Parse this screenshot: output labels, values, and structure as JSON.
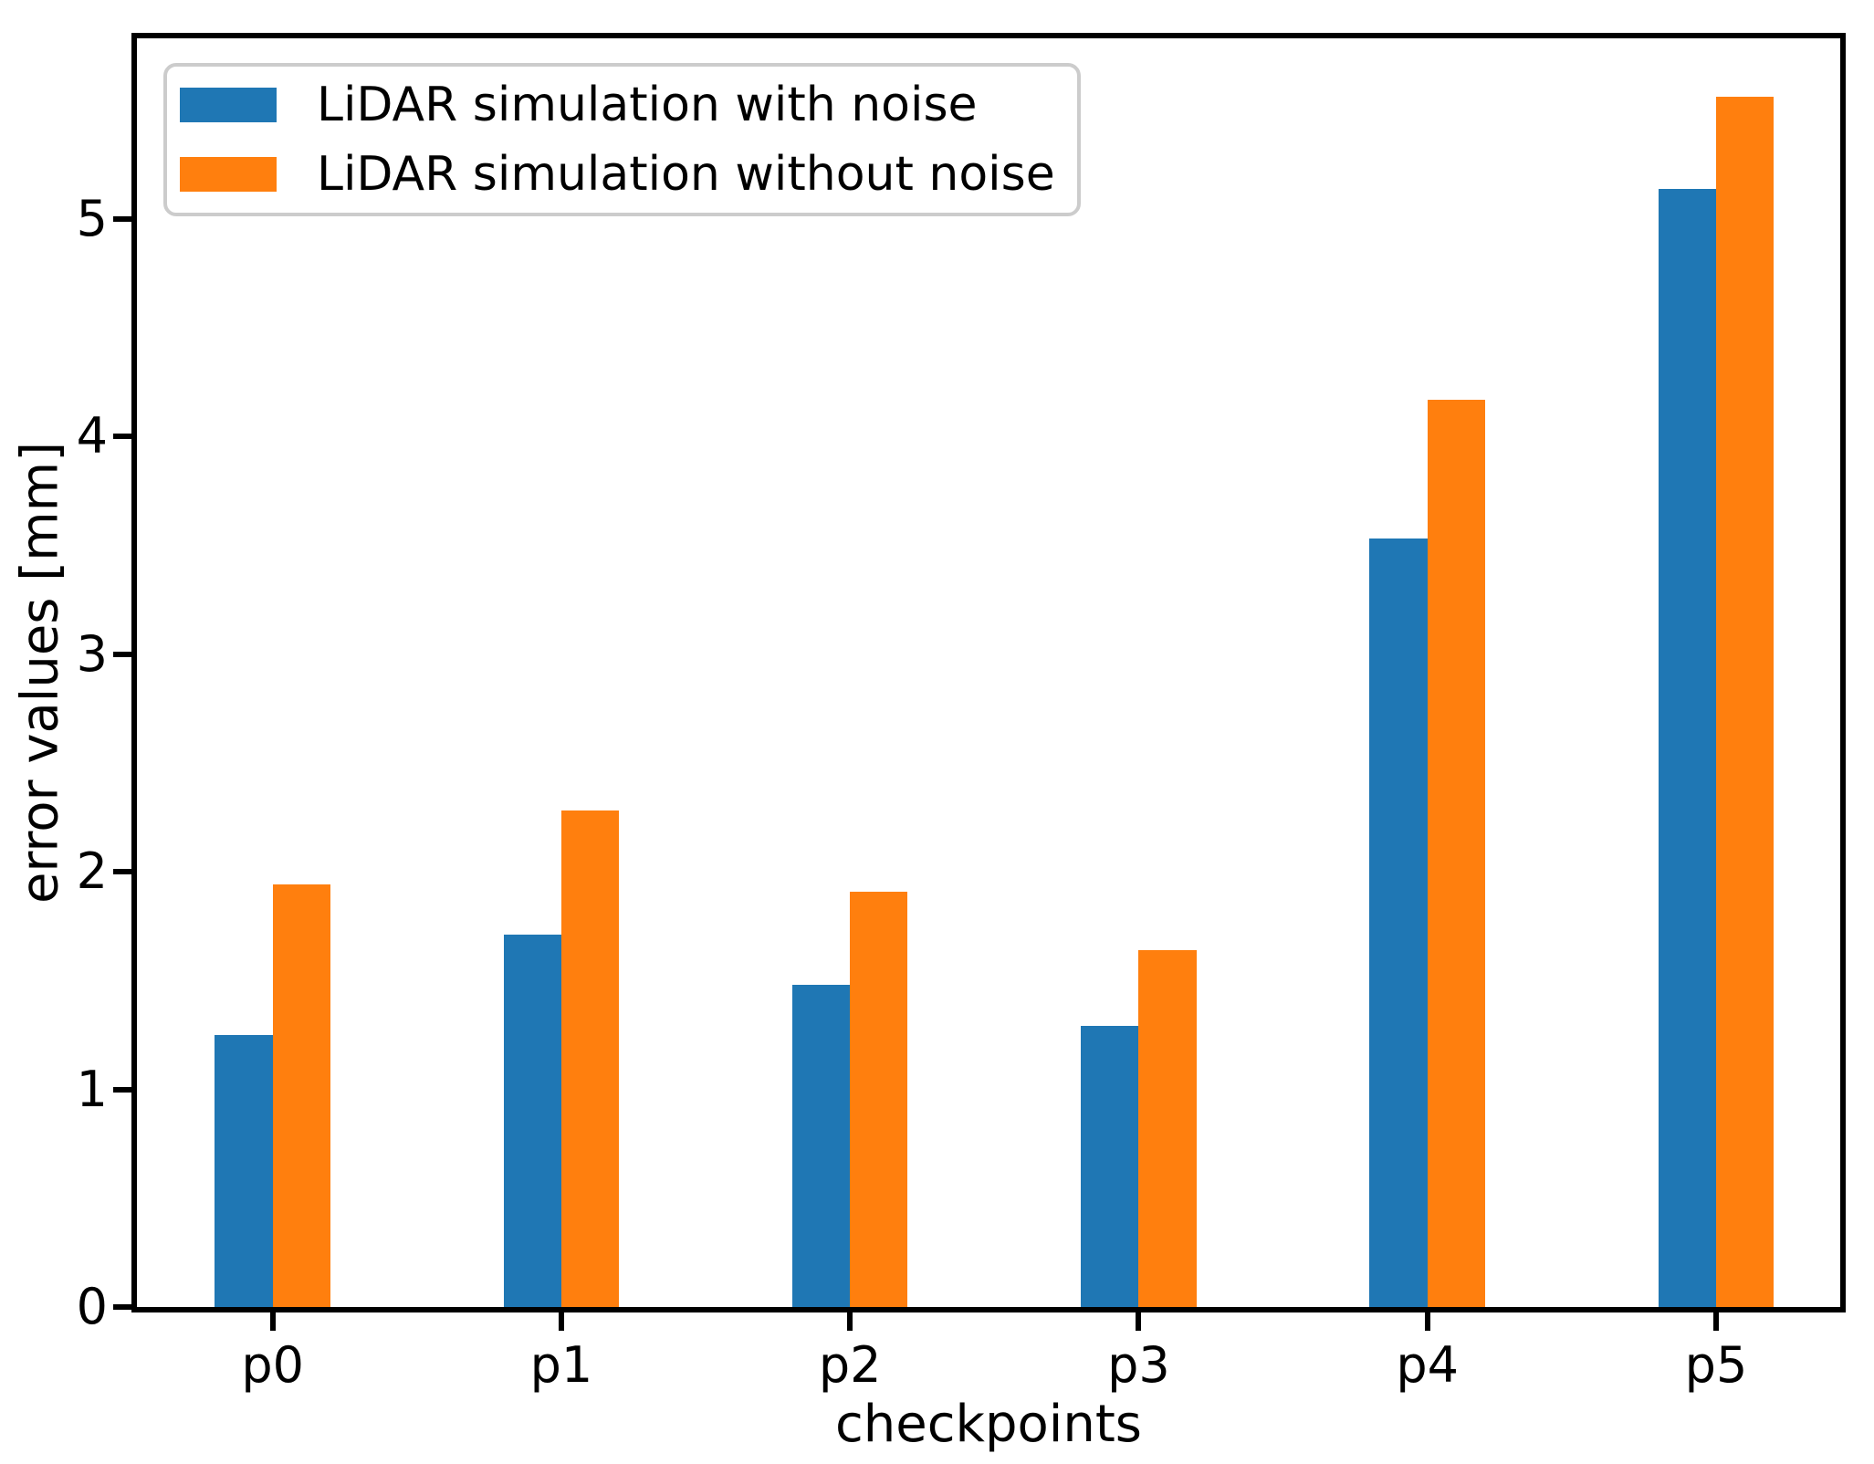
{
  "chart_data": {
    "type": "bar",
    "title": "",
    "xlabel": "checkpoints",
    "ylabel": "error values [mm]",
    "categories": [
      "p0",
      "p1",
      "p2",
      "p3",
      "p4",
      "p5"
    ],
    "series": [
      {
        "name": "LiDAR simulation with noise",
        "color": "#1f77b4",
        "values": [
          1.25,
          1.71,
          1.48,
          1.29,
          3.53,
          5.14
        ]
      },
      {
        "name": "LiDAR simulation without noise",
        "color": "#ff7f0e",
        "values": [
          1.94,
          2.28,
          1.91,
          1.64,
          4.17,
          5.56
        ]
      }
    ],
    "ylim": [
      0,
      5.83
    ],
    "yticks": [
      0,
      1,
      2,
      3,
      4,
      5
    ],
    "xlim": [
      -0.47,
      5.43
    ],
    "bar_width": 0.2,
    "grid": false,
    "legend_position": "upper left",
    "axis_color": "#000000",
    "legend_border_color": "#cccccc",
    "legend_background": "#ffffff"
  }
}
